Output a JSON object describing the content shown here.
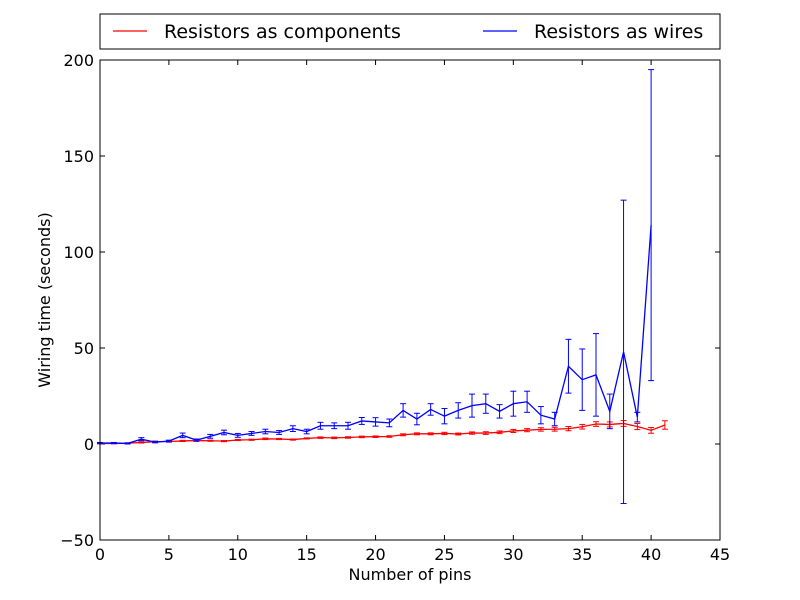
{
  "chart_data": {
    "type": "line",
    "title": "",
    "xlabel": "Number of pins",
    "ylabel": "Wiring time (seconds)",
    "xlim": [
      0,
      45
    ],
    "ylim": [
      -50,
      200
    ],
    "xticks": [
      0,
      5,
      10,
      15,
      20,
      25,
      30,
      35,
      40,
      45
    ],
    "yticks": [
      -50,
      0,
      50,
      100,
      150,
      200
    ],
    "grid": false,
    "legend_position": "top, above plot",
    "series": [
      {
        "name": "Resistors as components",
        "color": "#ff0000",
        "x": [
          0,
          1,
          2,
          3,
          4,
          5,
          6,
          7,
          8,
          9,
          10,
          11,
          12,
          13,
          14,
          15,
          16,
          17,
          18,
          19,
          20,
          21,
          22,
          23,
          24,
          25,
          26,
          27,
          28,
          29,
          30,
          31,
          32,
          33,
          34,
          35,
          36,
          37,
          38,
          39,
          40,
          41
        ],
        "y": [
          0.3,
          0.3,
          0.4,
          0.8,
          1.2,
          1.3,
          1.6,
          1.8,
          1.7,
          1.5,
          2.1,
          2.2,
          2.7,
          2.6,
          2.3,
          2.9,
          3.3,
          3.2,
          3.4,
          3.7,
          3.8,
          3.9,
          4.8,
          5.3,
          5.3,
          5.5,
          5.2,
          5.7,
          5.7,
          6.1,
          6.8,
          7.2,
          7.6,
          7.7,
          8.0,
          9.0,
          10.4,
          10.2,
          10.7,
          9.1,
          7.1,
          9.9
        ],
        "err": [
          0.2,
          0.2,
          0.2,
          0.3,
          0.3,
          0.3,
          0.3,
          0.3,
          0.3,
          0.3,
          0.3,
          0.3,
          0.4,
          0.3,
          0.3,
          0.3,
          0.4,
          0.4,
          0.4,
          0.4,
          0.4,
          0.4,
          0.5,
          0.5,
          0.5,
          0.6,
          0.5,
          0.6,
          0.7,
          0.7,
          0.8,
          0.8,
          0.9,
          1.0,
          1.1,
          1.2,
          1.2,
          1.3,
          1.5,
          1.6,
          1.5,
          2.2
        ]
      },
      {
        "name": "Resistors as wires",
        "color": "#0000ff",
        "x": [
          0,
          1,
          2,
          3,
          4,
          5,
          6,
          7,
          8,
          9,
          10,
          11,
          12,
          13,
          14,
          15,
          16,
          17,
          18,
          19,
          20,
          21,
          22,
          23,
          24,
          25,
          26,
          27,
          28,
          29,
          30,
          31,
          32,
          33,
          34,
          35,
          36,
          37,
          38,
          39,
          40
        ],
        "y": [
          0.5,
          0.5,
          0.3,
          2.5,
          1.0,
          1.5,
          4.5,
          2.0,
          4.0,
          6.0,
          4.5,
          5.5,
          6.5,
          6.0,
          8.0,
          6.5,
          9.5,
          9.5,
          9.5,
          12.0,
          11.5,
          11.0,
          17.5,
          13.0,
          18.0,
          14.5,
          17.5,
          20.0,
          21.0,
          17.0,
          21.0,
          22.0,
          15.0,
          13.0,
          40.5,
          33.5,
          36.0,
          17.0,
          48.0,
          14.0,
          114.0
        ],
        "err": [
          0.3,
          0.3,
          0.3,
          0.8,
          0.4,
          0.5,
          1.2,
          0.6,
          1.0,
          1.2,
          1.0,
          1.0,
          1.2,
          1.0,
          1.5,
          1.2,
          1.8,
          1.5,
          1.8,
          1.8,
          2.2,
          2.0,
          3.5,
          3.0,
          3.0,
          4.0,
          4.0,
          6.0,
          5.0,
          3.5,
          6.5,
          5.5,
          4.5,
          3.5,
          14.0,
          16.0,
          21.5,
          9.0,
          79.0,
          2.5,
          81.0
        ]
      }
    ]
  }
}
